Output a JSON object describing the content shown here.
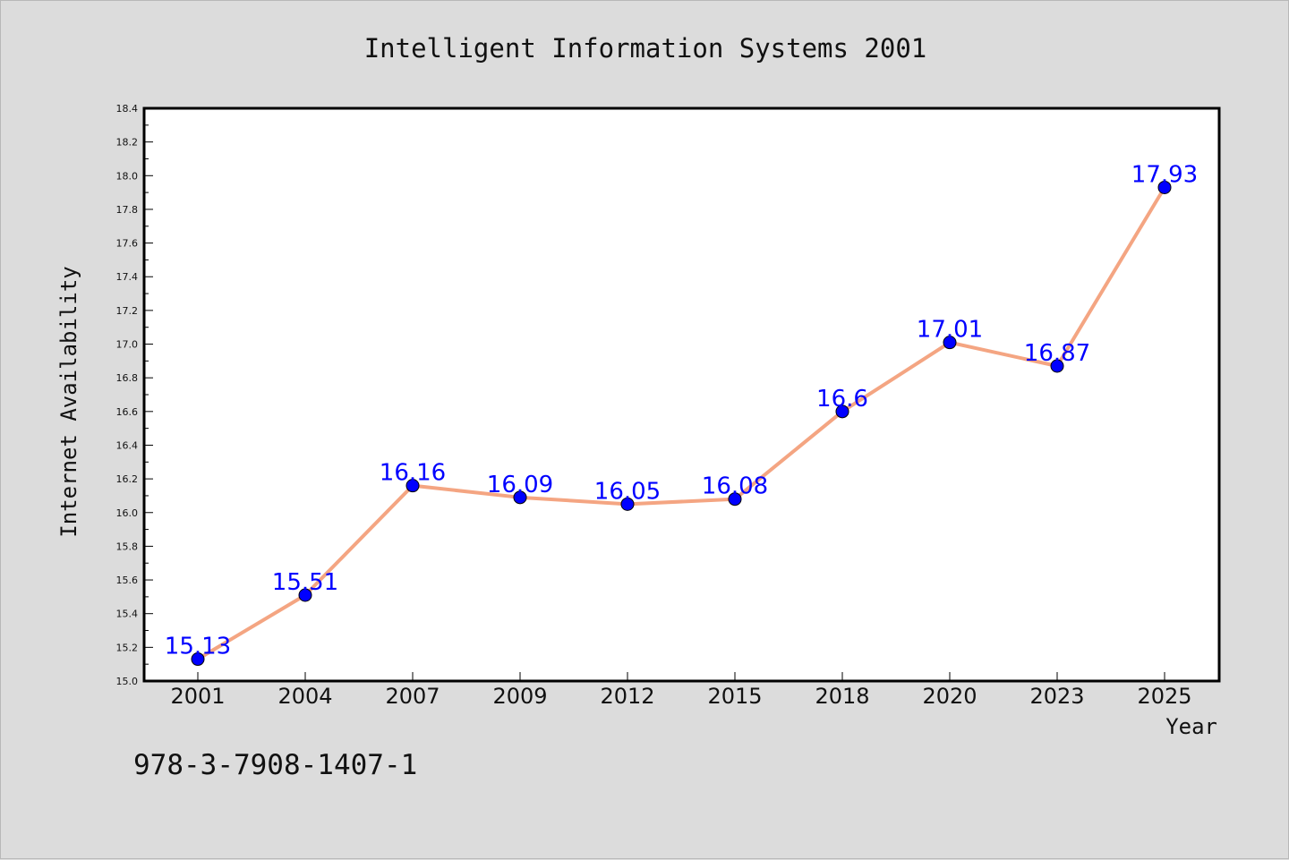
{
  "chart_data": {
    "type": "line",
    "title": "Intelligent Information Systems 2001",
    "xlabel": "Year",
    "ylabel": "Internet Availability",
    "categories": [
      "2001",
      "2004",
      "2007",
      "2009",
      "2012",
      "2015",
      "2018",
      "2020",
      "2023",
      "2025"
    ],
    "series": [
      {
        "values": [
          15.13,
          15.51,
          16.16,
          16.09,
          16.05,
          16.08,
          16.6,
          17.01,
          16.87,
          17.93
        ],
        "labels": [
          "15.13",
          "15.51",
          "16.16",
          "16.09",
          "16.05",
          "16.08",
          "16.6",
          "17.01",
          "16.87",
          "17.93"
        ],
        "line_color": "#f4a582",
        "marker_color": "#0000ff",
        "label_color": "#0000ff"
      }
    ],
    "ylim": [
      15.0,
      18.4
    ],
    "yticks": [
      "15.0",
      "15.2",
      "15.4",
      "15.6",
      "15.8",
      "16.0",
      "16.2",
      "16.4",
      "16.6",
      "16.8",
      "17.0",
      "17.2",
      "17.4",
      "17.6",
      "17.8",
      "18.0",
      "18.2",
      "18.4"
    ],
    "grid": false,
    "legend": "none"
  },
  "annotation": {
    "isbn": "978-3-7908-1407-1"
  },
  "colors": {
    "background": "#dcdcdc",
    "plot_background": "#ffffff",
    "axis": "#000000"
  }
}
